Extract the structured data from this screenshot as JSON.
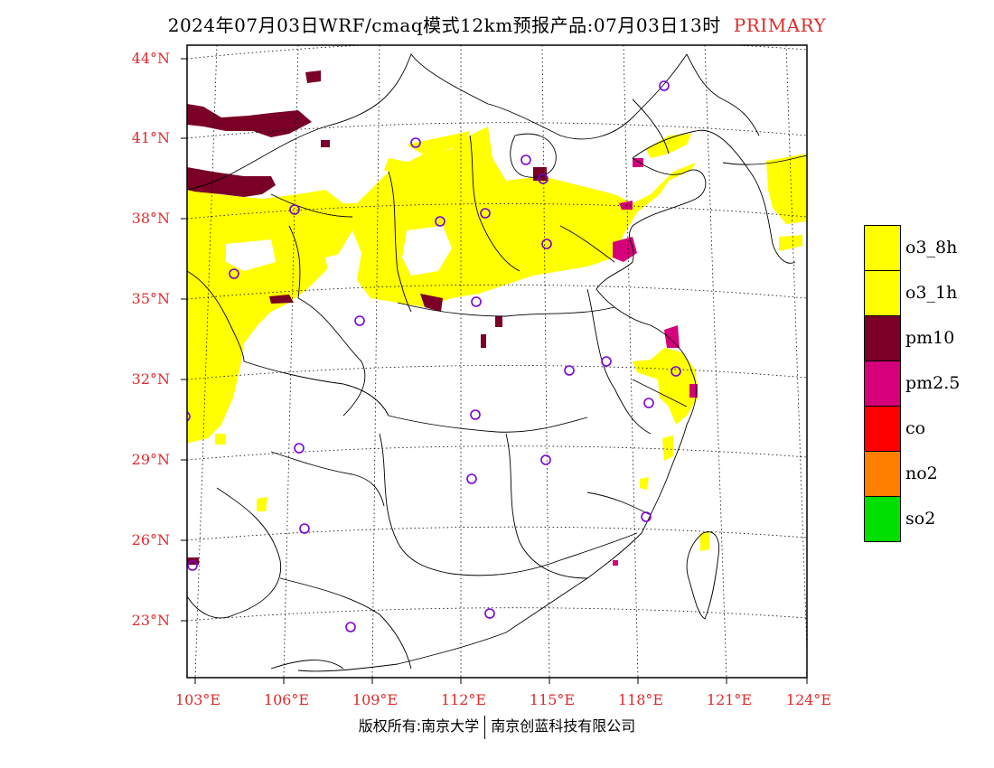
{
  "title": {
    "main": "2024年07月03日WRF/cmaq模式12km预报产品:07月03日13时",
    "status": "PRIMARY"
  },
  "axes": {
    "latitudes": [
      "44°N",
      "41°N",
      "38°N",
      "35°N",
      "32°N",
      "29°N",
      "26°N",
      "23°N"
    ],
    "longitudes": [
      "103°E",
      "106°E",
      "109°E",
      "112°E",
      "115°E",
      "118°E",
      "121°E",
      "124°E"
    ]
  },
  "legend": {
    "items": [
      {
        "label": "o3_8h",
        "color": "#ffff00"
      },
      {
        "label": "o3_1h",
        "color": "#ffff00"
      },
      {
        "label": "pm10",
        "color": "#7a0026"
      },
      {
        "label": "pm2.5",
        "color": "#d6007a"
      },
      {
        "label": "co",
        "color": "#ff0000"
      },
      {
        "label": "no2",
        "color": "#ff8000"
      },
      {
        "label": "so2",
        "color": "#00e000"
      }
    ]
  },
  "footer": {
    "left": "版权所有:南京大学",
    "right": "南京创蓝科技有限公司"
  },
  "colors": {
    "axis_label": "#e02a2a",
    "station_marker": "#7a00d6",
    "o3": "#ffff00",
    "pm10": "#7a0026",
    "pm25": "#d6007a"
  }
}
